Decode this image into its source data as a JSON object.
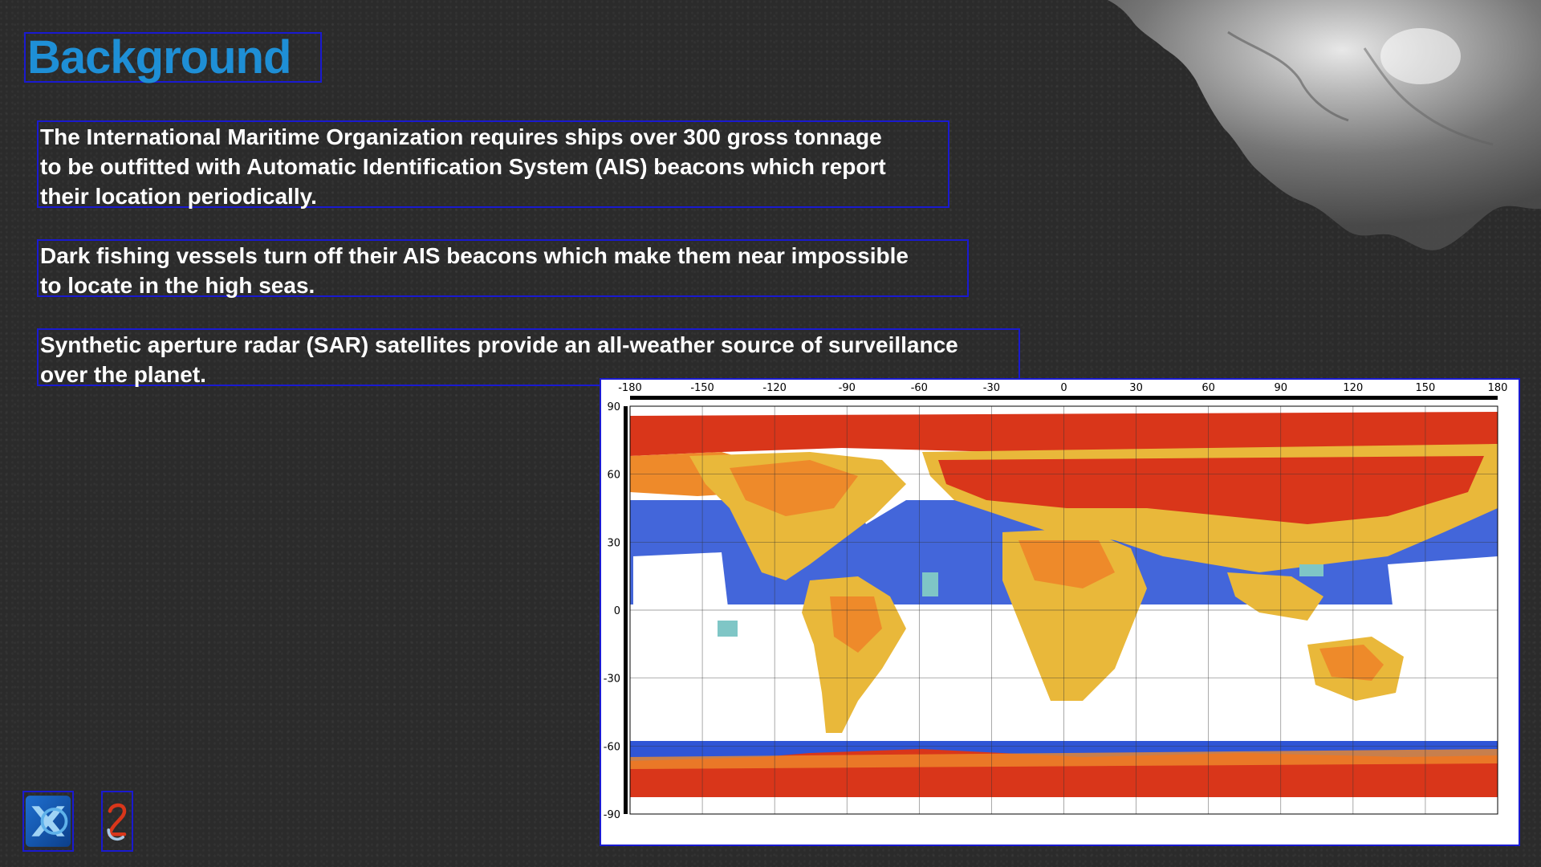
{
  "slide": {
    "title": "Background",
    "paragraphs": [
      "The International Maritime Organization requires ships over 300 gross tonnage\nto be outfitted with Automatic Identification System (AIS) beacons which report\ntheir location periodically.",
      "Dark fishing vessels turn off their AIS beacons which make them near impossible\nto locate in the high seas.",
      "Synthetic aperture radar (SAR) satellites provide an all-weather source of surveillance\nover the planet."
    ]
  },
  "map": {
    "x_ticks": [
      "-180",
      "-150",
      "-120",
      "-90",
      "-60",
      "-30",
      "0",
      "30",
      "60",
      "90",
      "120",
      "150",
      "180"
    ],
    "y_ticks": [
      "90",
      "60",
      "30",
      "0",
      "-30",
      "-60",
      "-90"
    ],
    "colors": {
      "high": "#d9361a",
      "mid_high": "#ee8a2a",
      "mid": "#e9b83a",
      "low_mid": "#7fc6c6",
      "low": "#2f55d6",
      "deep": "#1530b0",
      "none": "#ffffff"
    }
  },
  "logos": [
    {
      "icon": "x-logo-icon"
    },
    {
      "icon": "number-two-logo-icon"
    }
  ]
}
